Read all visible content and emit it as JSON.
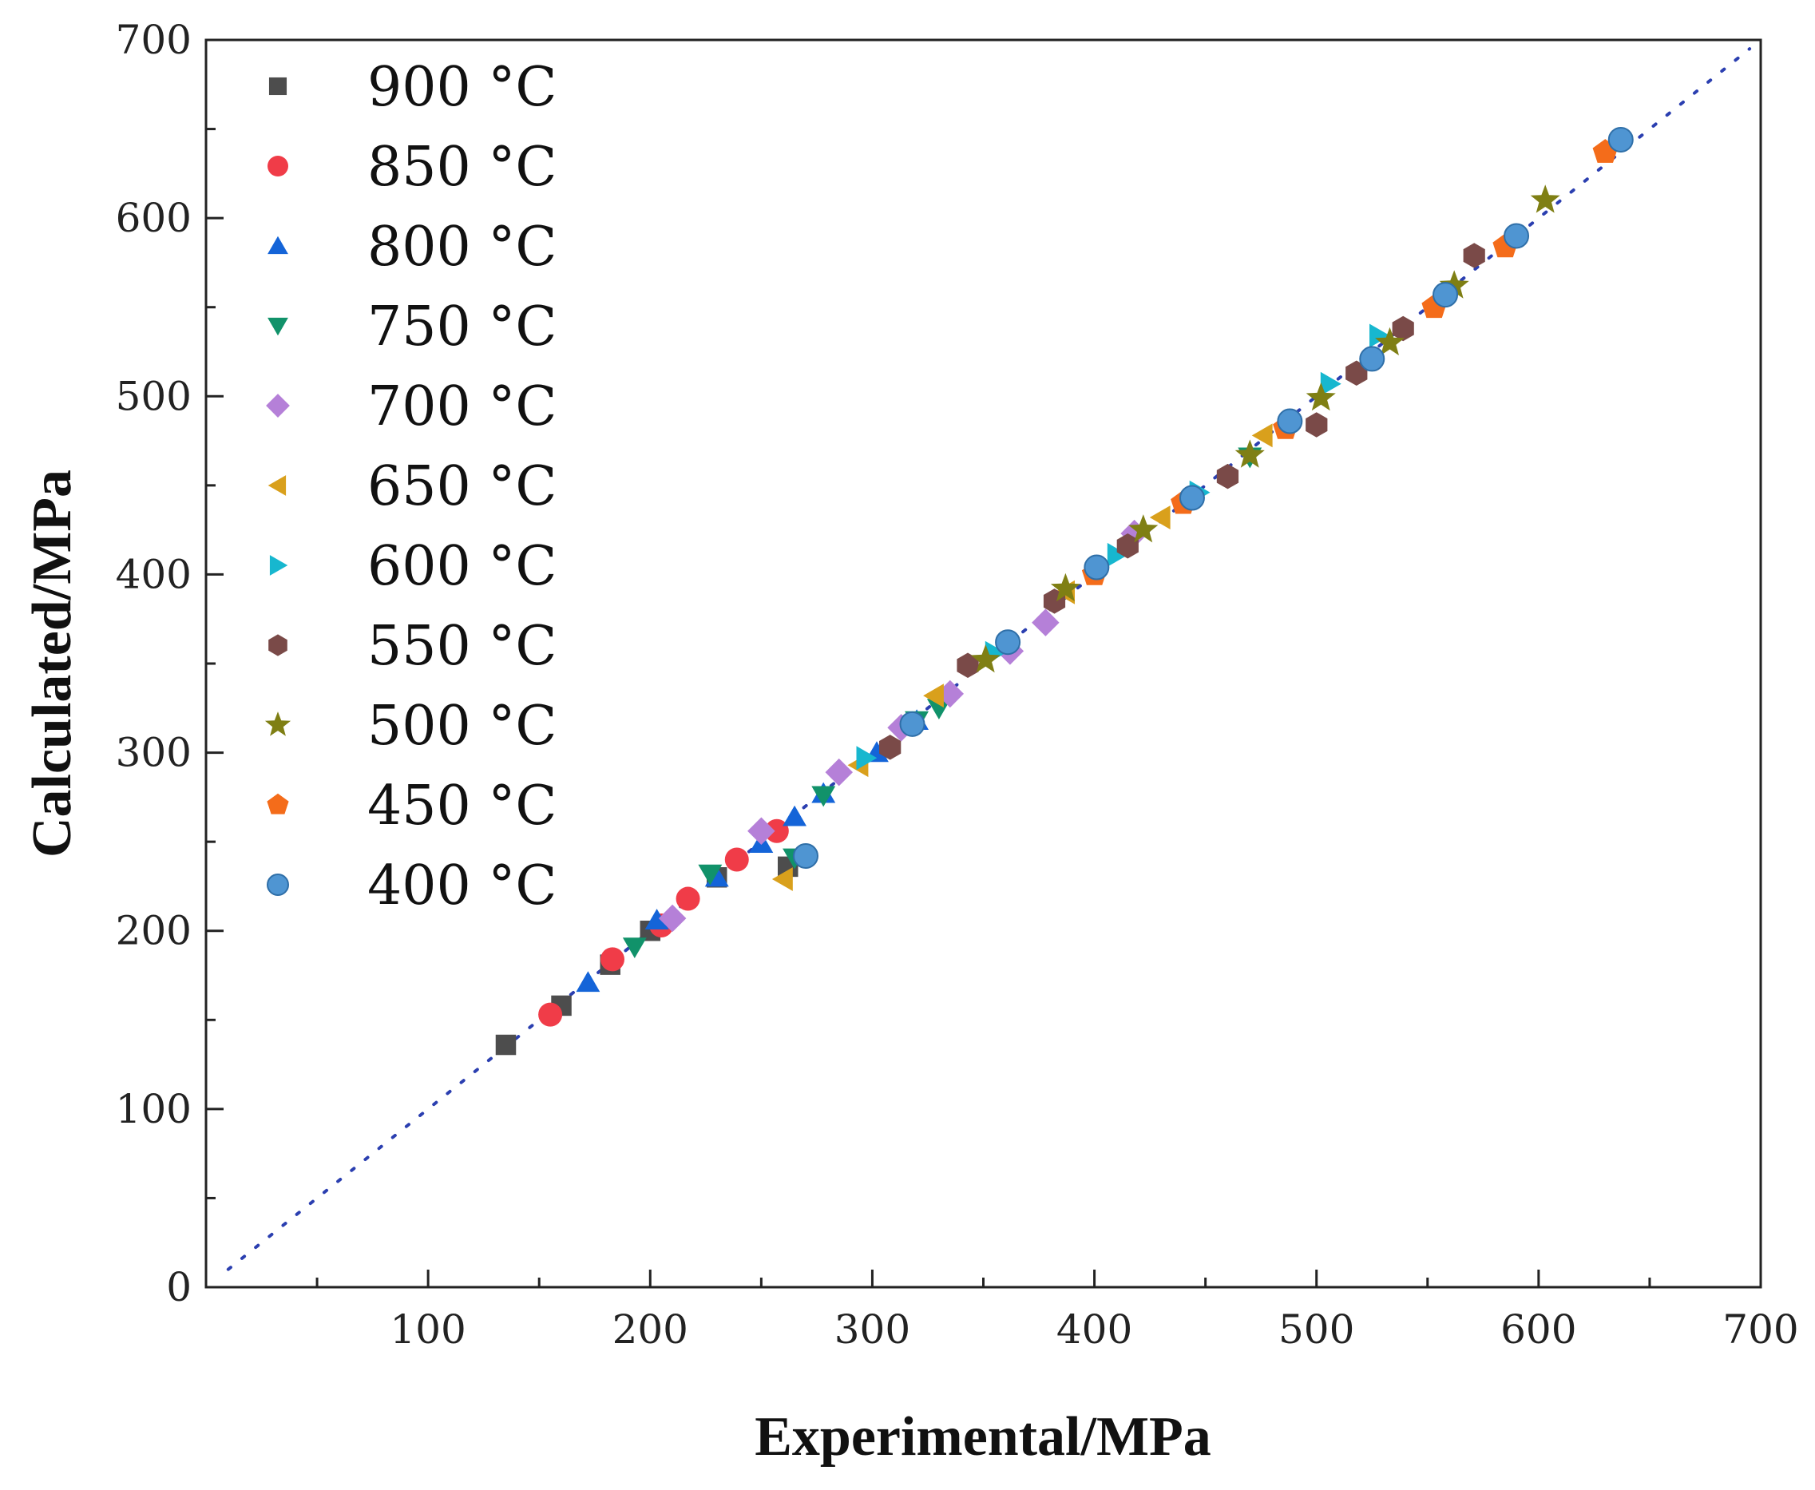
{
  "chart_data": {
    "type": "scatter",
    "title": "",
    "xlabel": "Experimental/MPa",
    "ylabel": "Calculated/MPa",
    "xlim": [
      0,
      700
    ],
    "ylim": [
      0,
      700
    ],
    "x_ticks": [
      100,
      200,
      300,
      400,
      500,
      600,
      700
    ],
    "y_ticks": [
      0,
      100,
      200,
      300,
      400,
      500,
      600,
      700
    ],
    "legend_position": "top-left",
    "reference_line": {
      "style": "dotted",
      "color": "#2b3fb0",
      "from": [
        10,
        10
      ],
      "to": [
        695,
        695
      ]
    },
    "series": [
      {
        "name": "900 °C",
        "marker": "square",
        "color": "#4d4d4d",
        "points": [
          [
            135,
            136
          ],
          [
            160,
            158
          ],
          [
            182,
            181
          ],
          [
            200,
            200
          ],
          [
            230,
            230
          ],
          [
            262,
            236
          ]
        ]
      },
      {
        "name": "850 °C",
        "marker": "circle",
        "color": "#f03c48",
        "points": [
          [
            155,
            153
          ],
          [
            183,
            184
          ],
          [
            205,
            203
          ],
          [
            217,
            218
          ],
          [
            239,
            240
          ],
          [
            257,
            256
          ]
        ]
      },
      {
        "name": "800 °C",
        "marker": "triangle-up",
        "color": "#1464d8",
        "points": [
          [
            172,
            171
          ],
          [
            203,
            206
          ],
          [
            230,
            230
          ],
          [
            250,
            249
          ],
          [
            265,
            264
          ],
          [
            278,
            277
          ],
          [
            302,
            300
          ],
          [
            320,
            318
          ]
        ]
      },
      {
        "name": "750 °C",
        "marker": "triangle-down",
        "color": "#11926a",
        "points": [
          [
            193,
            191
          ],
          [
            227,
            232
          ],
          [
            265,
            241
          ],
          [
            278,
            276
          ],
          [
            320,
            318
          ],
          [
            330,
            325
          ],
          [
            470,
            466
          ]
        ]
      },
      {
        "name": "700 °C",
        "marker": "diamond",
        "color": "#b580d8",
        "points": [
          [
            210,
            207
          ],
          [
            250,
            256
          ],
          [
            285,
            289
          ],
          [
            313,
            314
          ],
          [
            335,
            333
          ],
          [
            362,
            357
          ],
          [
            378,
            373
          ],
          [
            418,
            423
          ]
        ]
      },
      {
        "name": "650 °C",
        "marker": "triangle-left",
        "color": "#d9a01c",
        "points": [
          [
            260,
            229
          ],
          [
            294,
            293
          ],
          [
            328,
            332
          ],
          [
            387,
            390
          ],
          [
            430,
            432
          ],
          [
            476,
            478
          ]
        ]
      },
      {
        "name": "600 °C",
        "marker": "triangle-right",
        "color": "#17b7cf",
        "points": [
          [
            297,
            297
          ],
          [
            355,
            356
          ],
          [
            410,
            411
          ],
          [
            447,
            446
          ],
          [
            506,
            507
          ],
          [
            528,
            534
          ]
        ]
      },
      {
        "name": "550 °C",
        "marker": "hexagon",
        "color": "#7a4a48",
        "points": [
          [
            308,
            303
          ],
          [
            343,
            349
          ],
          [
            382,
            385
          ],
          [
            415,
            416
          ],
          [
            460,
            455
          ],
          [
            500,
            484
          ],
          [
            518,
            513
          ],
          [
            539,
            538
          ],
          [
            571,
            579
          ]
        ]
      },
      {
        "name": "500 °C",
        "marker": "star",
        "color": "#7f7f14",
        "points": [
          [
            351,
            352
          ],
          [
            387,
            392
          ],
          [
            422,
            425
          ],
          [
            470,
            467
          ],
          [
            502,
            499
          ],
          [
            533,
            530
          ],
          [
            562,
            562
          ],
          [
            603,
            610
          ]
        ]
      },
      {
        "name": "450 °C",
        "marker": "pentagon",
        "color": "#f46c1a",
        "points": [
          [
            400,
            400
          ],
          [
            440,
            440
          ],
          [
            486,
            482
          ],
          [
            553,
            550
          ],
          [
            585,
            584
          ],
          [
            630,
            637
          ]
        ]
      },
      {
        "name": "400 °C",
        "marker": "sphere",
        "color": "#4f95d2",
        "points": [
          [
            270,
            242
          ],
          [
            318,
            316
          ],
          [
            361,
            362
          ],
          [
            401,
            404
          ],
          [
            444,
            443
          ],
          [
            488,
            486
          ],
          [
            525,
            521
          ],
          [
            558,
            557
          ],
          [
            590,
            590
          ],
          [
            637,
            644
          ]
        ]
      }
    ]
  }
}
